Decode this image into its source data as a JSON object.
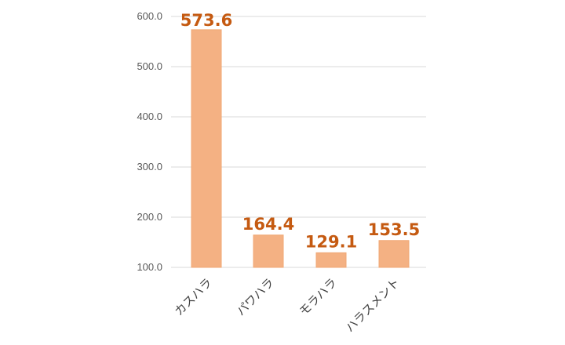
{
  "chart_data": {
    "type": "bar",
    "title": "",
    "xlabel": "",
    "ylabel": "",
    "categories": [
      "カスハラ",
      "パワハラ",
      "モラハラ",
      "ハラスメント"
    ],
    "values": [
      573.6,
      164.4,
      129.1,
      153.5
    ],
    "ylim": [
      100,
      600
    ],
    "yticks": [
      "100.0",
      "200.0",
      "300.0",
      "400.0",
      "500.0",
      "600.0"
    ],
    "grid": true,
    "legend": "none",
    "bar_color": "#f4b183",
    "bar_edge_color": "#f0a874",
    "label_color": "#c55a11",
    "grid_color": "#d9d9d9"
  }
}
